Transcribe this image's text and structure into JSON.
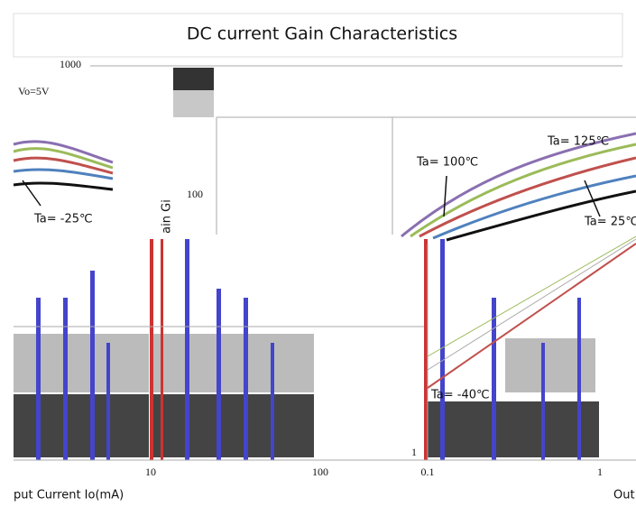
{
  "title": "DC current Gain Characteristics",
  "left_panel": {
    "condition": "Vo=5V",
    "curve_label": "Ta= -25℃",
    "y_tick_top": "1000",
    "x_ticks": [
      "10",
      "100"
    ],
    "x_axis_label": "put Current   Io(mA)"
  },
  "right_panel": {
    "y_axis_label": "ain Gi",
    "y_ticks": [
      "100",
      "1"
    ],
    "x_ticks": [
      "0.1",
      "1"
    ],
    "x_axis_label": "Out",
    "curve_labels": [
      "Ta= 125℃",
      "Ta= 100℃",
      "Ta= 25℃",
      "Ta= -40℃"
    ]
  }
}
